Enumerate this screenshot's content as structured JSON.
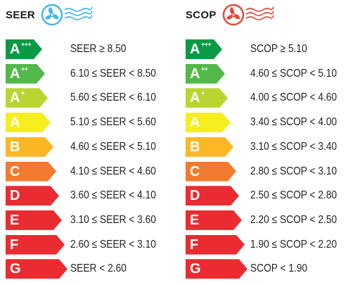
{
  "seer": {
    "title": "SEER",
    "icon": "blue-fan-icon",
    "color": "#47b6e6",
    "rows": [
      {
        "letter": "A",
        "sup": "+++",
        "color": "#0a9a45",
        "range": "SEER ≥ 8.50"
      },
      {
        "letter": "A",
        "sup": "++",
        "color": "#52b848",
        "range": "6.10 ≤ SEER < 8.50"
      },
      {
        "letter": "A",
        "sup": "+",
        "color": "#b9d532",
        "range": "5.60 ≤ SEER < 6.10"
      },
      {
        "letter": "A",
        "sup": "",
        "color": "#f6ee1f",
        "range": "5.10 ≤ SEER < 5.60"
      },
      {
        "letter": "B",
        "sup": "",
        "color": "#fbb724",
        "range": "4.60 ≤ SEER < 5.10"
      },
      {
        "letter": "C",
        "sup": "",
        "color": "#f27a2d",
        "range": "4.10 ≤ SEER < 4.60"
      },
      {
        "letter": "D",
        "sup": "",
        "color": "#ea2b31",
        "range": "3.60 ≤ SEER < 4.10"
      },
      {
        "letter": "E",
        "sup": "",
        "color": "#ea2b31",
        "range": "3.10 ≤ SEER < 3.60"
      },
      {
        "letter": "F",
        "sup": "",
        "color": "#ea2b31",
        "range": "2.60 ≤ SEER < 3.10"
      },
      {
        "letter": "G",
        "sup": "",
        "color": "#ea2b31",
        "range": "SEER < 2.60"
      }
    ]
  },
  "scop": {
    "title": "SCOP",
    "icon": "red-fan-icon",
    "color": "#e8493a",
    "rows": [
      {
        "letter": "A",
        "sup": "+++",
        "color": "#0a9a45",
        "range": "SCOP ≥ 5.10"
      },
      {
        "letter": "A",
        "sup": "++",
        "color": "#52b848",
        "range": "4.60 ≤ SCOP < 5.10"
      },
      {
        "letter": "A",
        "sup": "+",
        "color": "#b9d532",
        "range": "4.00 ≤ SCOP < 4.60"
      },
      {
        "letter": "A",
        "sup": "",
        "color": "#f6ee1f",
        "range": "3.40 ≤ SCOP < 4.00"
      },
      {
        "letter": "B",
        "sup": "",
        "color": "#fbb724",
        "range": "3.10 ≤ SCOP < 3.40"
      },
      {
        "letter": "C",
        "sup": "",
        "color": "#f27a2d",
        "range": "2.80 ≤ SCOP < 3.10"
      },
      {
        "letter": "D",
        "sup": "",
        "color": "#ea2b31",
        "range": "2.50 ≤ SCOP < 2.80"
      },
      {
        "letter": "E",
        "sup": "",
        "color": "#ea2b31",
        "range": "2.20 ≤ SCOP < 2.50"
      },
      {
        "letter": "F",
        "sup": "",
        "color": "#ea2b31",
        "range": "1.90 ≤ SCOP < 2.20"
      },
      {
        "letter": "G",
        "sup": "",
        "color": "#ea2b31",
        "range": "SCOP < 1.90"
      }
    ]
  }
}
